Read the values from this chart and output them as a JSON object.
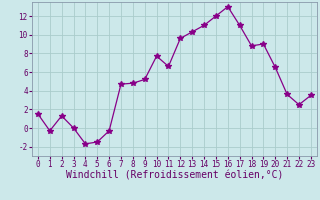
{
  "x": [
    0,
    1,
    2,
    3,
    4,
    5,
    6,
    7,
    8,
    9,
    10,
    11,
    12,
    13,
    14,
    15,
    16,
    17,
    18,
    19,
    20,
    21,
    22,
    23
  ],
  "y": [
    1.5,
    -0.3,
    1.3,
    0.0,
    -1.7,
    -1.5,
    -0.3,
    4.7,
    4.8,
    5.2,
    7.7,
    6.6,
    9.6,
    10.3,
    11.0,
    12.0,
    13.0,
    11.0,
    8.8,
    9.0,
    6.5,
    3.6,
    2.5,
    3.5
  ],
  "line_color": "#880088",
  "marker": "*",
  "marker_size": 4,
  "bg_color": "#cce8ea",
  "grid_color": "#aacccc",
  "xlabel": "Windchill (Refroidissement éolien,°C)",
  "xlim": [
    -0.5,
    23.5
  ],
  "ylim": [
    -3.0,
    13.5
  ],
  "yticks": [
    -2,
    0,
    2,
    4,
    6,
    8,
    10,
    12
  ],
  "xtick_labels": [
    "0",
    "1",
    "2",
    "3",
    "4",
    "5",
    "6",
    "7",
    "8",
    "9",
    "10",
    "11",
    "12",
    "13",
    "14",
    "15",
    "16",
    "17",
    "18",
    "19",
    "20",
    "21",
    "22",
    "23"
  ],
  "tick_color": "#660066",
  "tick_fontsize": 5.5,
  "xlabel_fontsize": 7.0,
  "spine_color": "#8899aa"
}
